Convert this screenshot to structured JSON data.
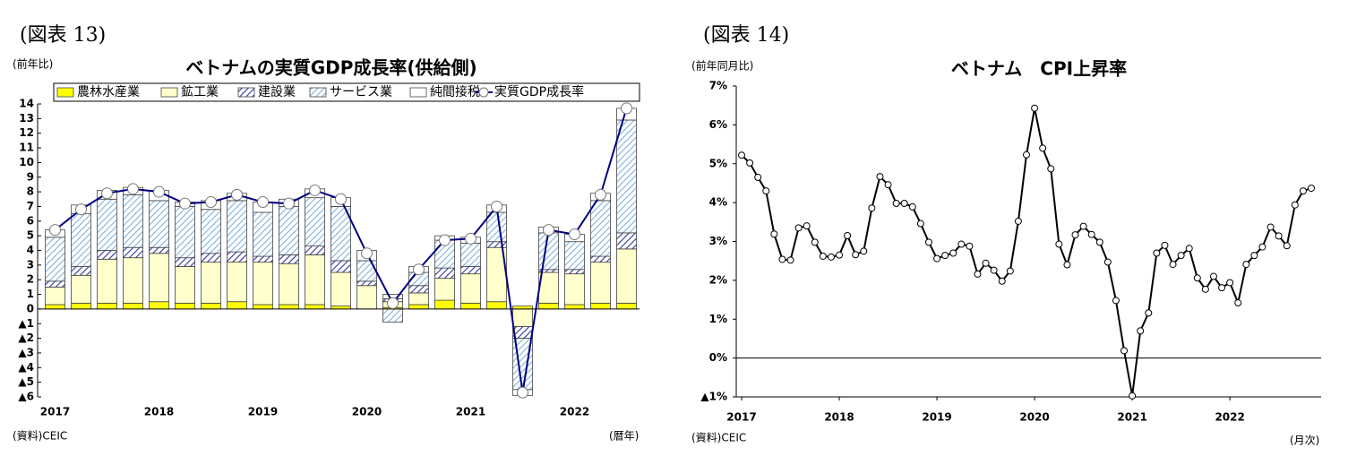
{
  "chart_data": [
    {
      "type": "bar",
      "stacked": true,
      "figure_label": "(図表 13)",
      "title": "ベトナムの実質GDP成長率(供給側)",
      "y_label": "(前年比)",
      "x_label": "(暦年)",
      "source": "(資料)CEIC",
      "categories": [
        "2017",
        null,
        null,
        null,
        "2018",
        null,
        null,
        null,
        "2019",
        null,
        null,
        null,
        "2020",
        null,
        null,
        null,
        "2021",
        null,
        null,
        null,
        "2022",
        null,
        null
      ],
      "series": [
        {
          "name": "農林水産業",
          "color": "#ffff00",
          "values": [
            0.3,
            0.4,
            0.4,
            0.4,
            0.5,
            0.4,
            0.4,
            0.5,
            0.3,
            0.3,
            0.3,
            0.2,
            0.0,
            0.1,
            0.3,
            0.6,
            0.4,
            0.5,
            0.2,
            0.4,
            0.3,
            0.4,
            0.4
          ]
        },
        {
          "name": "鉱工業",
          "color": "#ffffcc",
          "values": [
            1.2,
            1.9,
            3.0,
            3.1,
            3.3,
            2.5,
            2.8,
            2.7,
            2.9,
            2.8,
            3.4,
            2.3,
            1.6,
            0.4,
            0.8,
            1.5,
            2.0,
            3.7,
            -1.2,
            2.1,
            2.1,
            2.8,
            3.7
          ]
        },
        {
          "name": "建設業",
          "color": "#333399",
          "pattern": "hatch",
          "values": [
            0.4,
            0.6,
            0.6,
            0.7,
            0.4,
            0.6,
            0.6,
            0.7,
            0.4,
            0.6,
            0.6,
            0.8,
            0.3,
            0.2,
            0.5,
            0.7,
            0.5,
            0.4,
            -0.8,
            0.2,
            0.3,
            0.4,
            1.1
          ]
        },
        {
          "name": "サービス業",
          "color": "#7fb2dc",
          "pattern": "hatch",
          "values": [
            3.0,
            3.6,
            3.5,
            3.6,
            3.2,
            3.5,
            3.0,
            3.5,
            3.0,
            3.3,
            3.3,
            3.7,
            1.4,
            -0.9,
            0.9,
            1.9,
            1.6,
            2.0,
            -3.5,
            2.5,
            1.9,
            3.8,
            7.7
          ]
        },
        {
          "name": "純間接税",
          "color": "#ffffff",
          "values": [
            0.5,
            0.6,
            0.6,
            0.5,
            0.7,
            0.3,
            0.6,
            0.5,
            0.7,
            0.5,
            0.6,
            0.6,
            0.7,
            0.3,
            0.4,
            0.3,
            0.4,
            0.5,
            -0.4,
            0.4,
            0.5,
            0.5,
            0.8
          ]
        },
        {
          "name": "実質GDP成長率",
          "type": "line",
          "color": "#000080",
          "values": [
            5.4,
            6.8,
            7.9,
            8.2,
            8.0,
            7.2,
            7.3,
            7.8,
            7.3,
            7.2,
            8.1,
            7.5,
            3.8,
            0.4,
            2.7,
            4.7,
            4.8,
            7.0,
            -5.7,
            5.4,
            5.1,
            7.8,
            13.7
          ]
        }
      ],
      "ylim": [
        -6,
        14
      ],
      "yticks": [
        14,
        13,
        12,
        11,
        10,
        9,
        8,
        7,
        6,
        5,
        4,
        3,
        2,
        1,
        0,
        {
          "value": -1,
          "label": "▲1"
        },
        {
          "value": -2,
          "label": "▲2"
        },
        {
          "value": -3,
          "label": "▲3"
        },
        {
          "value": -4,
          "label": "▲4"
        },
        {
          "value": -5,
          "label": "▲5"
        },
        {
          "value": -6,
          "label": "▲6"
        }
      ],
      "legend": "top"
    },
    {
      "type": "line",
      "figure_label": "(図表 14)",
      "title": "ベトナム　CPI上昇率",
      "y_label": "(前年同月比)",
      "x_label": "(月次)",
      "source": "(資料)CEIC",
      "categories": [
        "2017",
        null,
        null,
        null,
        null,
        null,
        null,
        null,
        null,
        null,
        null,
        null,
        "2018",
        null,
        null,
        null,
        null,
        null,
        null,
        null,
        null,
        null,
        null,
        null,
        "2019",
        null,
        null,
        null,
        null,
        null,
        null,
        null,
        null,
        null,
        null,
        null,
        "2020",
        null,
        null,
        null,
        null,
        null,
        null,
        null,
        null,
        null,
        null,
        null,
        "2021",
        null,
        null,
        null,
        null,
        null,
        null,
        null,
        null,
        null,
        null,
        null,
        "2022",
        null,
        null,
        null,
        null,
        null,
        null,
        null,
        null,
        null,
        null
      ],
      "series": [
        {
          "name": "CPI上昇率",
          "color": "#000000",
          "values": [
            5.22,
            5.02,
            4.65,
            4.3,
            3.19,
            2.54,
            2.52,
            3.35,
            3.4,
            2.98,
            2.62,
            2.6,
            2.65,
            3.15,
            2.66,
            2.75,
            3.86,
            4.67,
            4.46,
            3.98,
            3.98,
            3.89,
            3.46,
            2.98,
            2.56,
            2.64,
            2.7,
            2.93,
            2.88,
            2.16,
            2.44,
            2.26,
            1.98,
            2.24,
            3.52,
            5.23,
            6.43,
            5.4,
            4.87,
            2.93,
            2.4,
            3.17,
            3.39,
            3.18,
            2.98,
            2.47,
            1.48,
            0.19,
            -0.97,
            0.7,
            1.16,
            2.7,
            2.9,
            2.41,
            2.64,
            2.82,
            2.06,
            1.77,
            2.1,
            1.81,
            1.94,
            1.42,
            2.41,
            2.64,
            2.86,
            3.37,
            3.14,
            2.89,
            3.94,
            4.3,
            4.37
          ]
        }
      ],
      "ylim": [
        -1,
        7
      ],
      "yticks": [
        {
          "value": 7,
          "label": "7%"
        },
        {
          "value": 6,
          "label": "6%"
        },
        {
          "value": 5,
          "label": "5%"
        },
        {
          "value": 4,
          "label": "4%"
        },
        {
          "value": 3,
          "label": "3%"
        },
        {
          "value": 2,
          "label": "2%"
        },
        {
          "value": 1,
          "label": "1%"
        },
        {
          "value": 0,
          "label": "0%"
        },
        {
          "value": -1,
          "label": "▲1%"
        }
      ]
    }
  ]
}
